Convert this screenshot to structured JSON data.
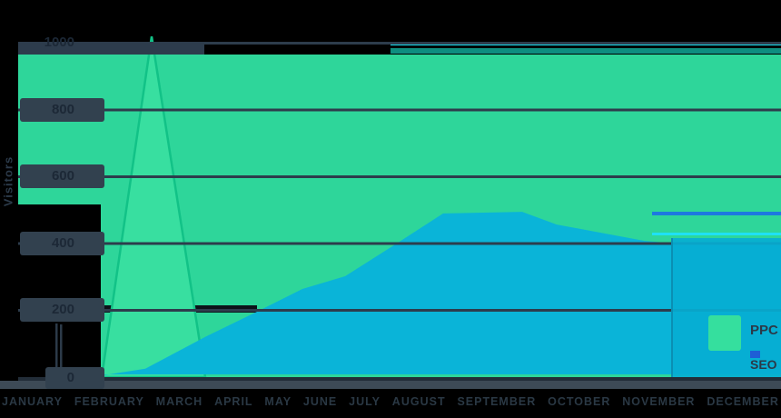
{
  "y_axis": {
    "title": "Visitors",
    "ticks": [
      "1000",
      "800",
      "600",
      "400",
      "200",
      "0"
    ]
  },
  "x_axis": {
    "labels": [
      "JANUARY",
      "FEBRUARY",
      "MARCH",
      "APRIL",
      "MAY",
      "JUNE",
      "JULY",
      "AUGUST",
      "SEPTEMBER",
      "OCTOBER",
      "NOVEMBER",
      "DECEMBER"
    ]
  },
  "legend": {
    "items": [
      {
        "label": "PPC",
        "color": "#35df9e"
      },
      {
        "label": "SEO",
        "color": "#1e5ed6"
      }
    ]
  },
  "colors": {
    "page_background": "#000000",
    "plot_field_green": "#2ed69a",
    "ppc_fill": "#38dfa0",
    "ppc_stroke": "#12c287",
    "seo_fill": "#0ab4d8",
    "gridline": "#2d3c4c",
    "tick_chip": "#32414f",
    "axis_text": "#1c2836",
    "baseline_band": "#3d4a56",
    "legend_ppc_swatch": "#35df9e",
    "legend_seo_swatch": "#1e5ed6"
  },
  "chart_data": {
    "type": "area",
    "title": "",
    "xlabel": "",
    "ylabel": "Visitors",
    "ylim": [
      0,
      1100
    ],
    "yticks": [
      0,
      200,
      400,
      600,
      800,
      1000
    ],
    "grid": "horizontal",
    "legend_position": "bottom-right",
    "x_categories": [
      "JANUARY",
      "FEBRUARY",
      "MARCH",
      "APRIL",
      "MAY",
      "JUNE",
      "JULY",
      "AUGUST",
      "SEPTEMBER",
      "OCTOBER",
      "NOVEMBER",
      "DECEMBER"
    ],
    "series": [
      {
        "name": "PPC",
        "color": "#38dfa0",
        "shape": "spike",
        "points": [
          [
            112,
            0
          ],
          [
            167,
            1020
          ],
          [
            226,
            0
          ]
        ]
      },
      {
        "name": "SEO",
        "color": "#0ab4d8",
        "shape": "smooth-rise-plateau-decline",
        "points": [
          [
            112,
            5
          ],
          [
            160,
            25
          ],
          [
            227,
            122
          ],
          [
            283,
            196
          ],
          [
            333,
            264
          ],
          [
            380,
            302
          ],
          [
            435,
            397
          ],
          [
            488,
            490
          ],
          [
            575,
            495
          ],
          [
            613,
            457
          ],
          [
            710,
            408
          ],
          [
            745,
            400
          ],
          [
            860,
            398
          ]
        ]
      }
    ],
    "gridline_values": [
      200,
      400,
      600,
      800,
      1000
    ]
  }
}
